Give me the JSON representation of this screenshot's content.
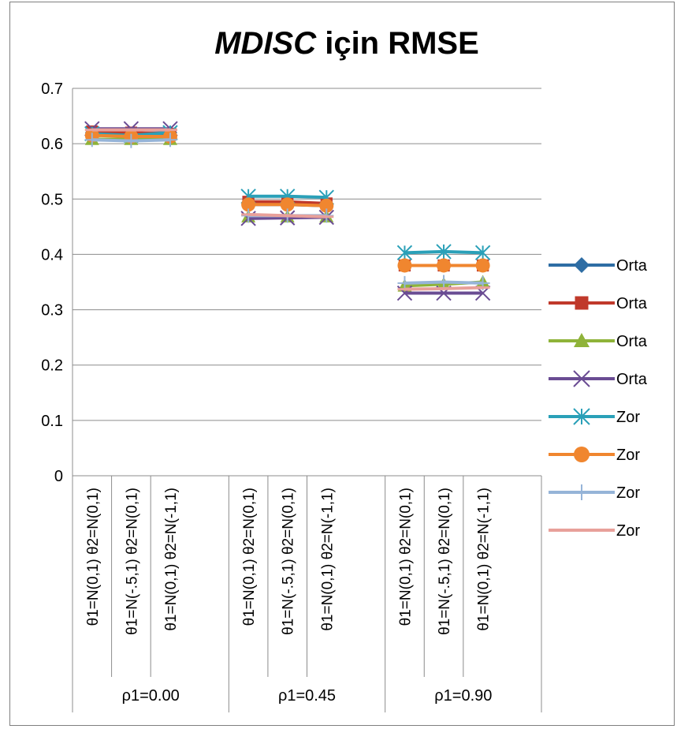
{
  "chart_data": {
    "type": "line",
    "title_italic": "MDISC",
    "title_rest": " için RMSE",
    "ylim": [
      0,
      0.7
    ],
    "yticks": [
      "0",
      "0.1",
      "0.2",
      "0.3",
      "0.4",
      "0.5",
      "0.6",
      "0.7"
    ],
    "grid": true,
    "legend_position": "right",
    "groups": [
      {
        "label": "ρ1=0.00",
        "categories": [
          "θ1=N(0,1) θ2=N(0,1)",
          "θ1=N(-.5,1) θ2=N(0,1)",
          "θ1=N(0,1) θ2=N(-1,1)"
        ]
      },
      {
        "label": "ρ1=0.45",
        "categories": [
          "θ1=N(0,1) θ2=N(0,1)",
          "θ1=N(-.5,1) θ2=N(0,1)",
          "θ1=N(0,1) θ2=N(-1,1)"
        ]
      },
      {
        "label": "ρ1=0.90",
        "categories": [
          "θ1=N(0,1) θ2=N(0,1)",
          "θ1=N(-.5,1) θ2=N(0,1)",
          "θ1=N(0,1) θ2=N(-1,1)"
        ]
      }
    ],
    "series": [
      {
        "name": "Orta",
        "color": "#2e6da4",
        "marker": "diamond",
        "groups": [
          [
            0.62,
            0.618,
            0.62
          ],
          [
            0.49,
            0.49,
            0.488
          ],
          [
            0.38,
            0.38,
            0.38
          ]
        ]
      },
      {
        "name": "Orta",
        "color": "#c0392b",
        "marker": "square",
        "groups": [
          [
            0.622,
            0.62,
            0.618
          ],
          [
            0.495,
            0.495,
            0.492
          ],
          [
            0.38,
            0.38,
            0.38
          ]
        ]
      },
      {
        "name": "Orta",
        "color": "#8fb339",
        "marker": "triangle",
        "groups": [
          [
            0.608,
            0.608,
            0.608
          ],
          [
            0.468,
            0.468,
            0.468
          ],
          [
            0.343,
            0.346,
            0.35
          ]
        ]
      },
      {
        "name": "Orta",
        "color": "#6a4c93",
        "marker": "x",
        "groups": [
          [
            0.627,
            0.627,
            0.627
          ],
          [
            0.465,
            0.466,
            0.467
          ],
          [
            0.33,
            0.33,
            0.33
          ]
        ]
      },
      {
        "name": "Zor",
        "color": "#2aa0b8",
        "marker": "star",
        "groups": [
          [
            0.618,
            0.615,
            0.62
          ],
          [
            0.505,
            0.505,
            0.503
          ],
          [
            0.403,
            0.405,
            0.403
          ]
        ]
      },
      {
        "name": "Zor",
        "color": "#f0862f",
        "marker": "circle",
        "groups": [
          [
            0.615,
            0.613,
            0.613
          ],
          [
            0.49,
            0.49,
            0.488
          ],
          [
            0.38,
            0.38,
            0.38
          ]
        ]
      },
      {
        "name": "Zor",
        "color": "#96b4d8",
        "marker": "plus",
        "groups": [
          [
            0.607,
            0.605,
            0.607
          ],
          [
            0.47,
            0.47,
            0.47
          ],
          [
            0.348,
            0.35,
            0.348
          ]
        ]
      },
      {
        "name": "Zor",
        "color": "#e8a09a",
        "marker": "dash",
        "groups": [
          [
            0.625,
            0.625,
            0.625
          ],
          [
            0.472,
            0.47,
            0.468
          ],
          [
            0.337,
            0.338,
            0.34
          ]
        ]
      }
    ]
  }
}
